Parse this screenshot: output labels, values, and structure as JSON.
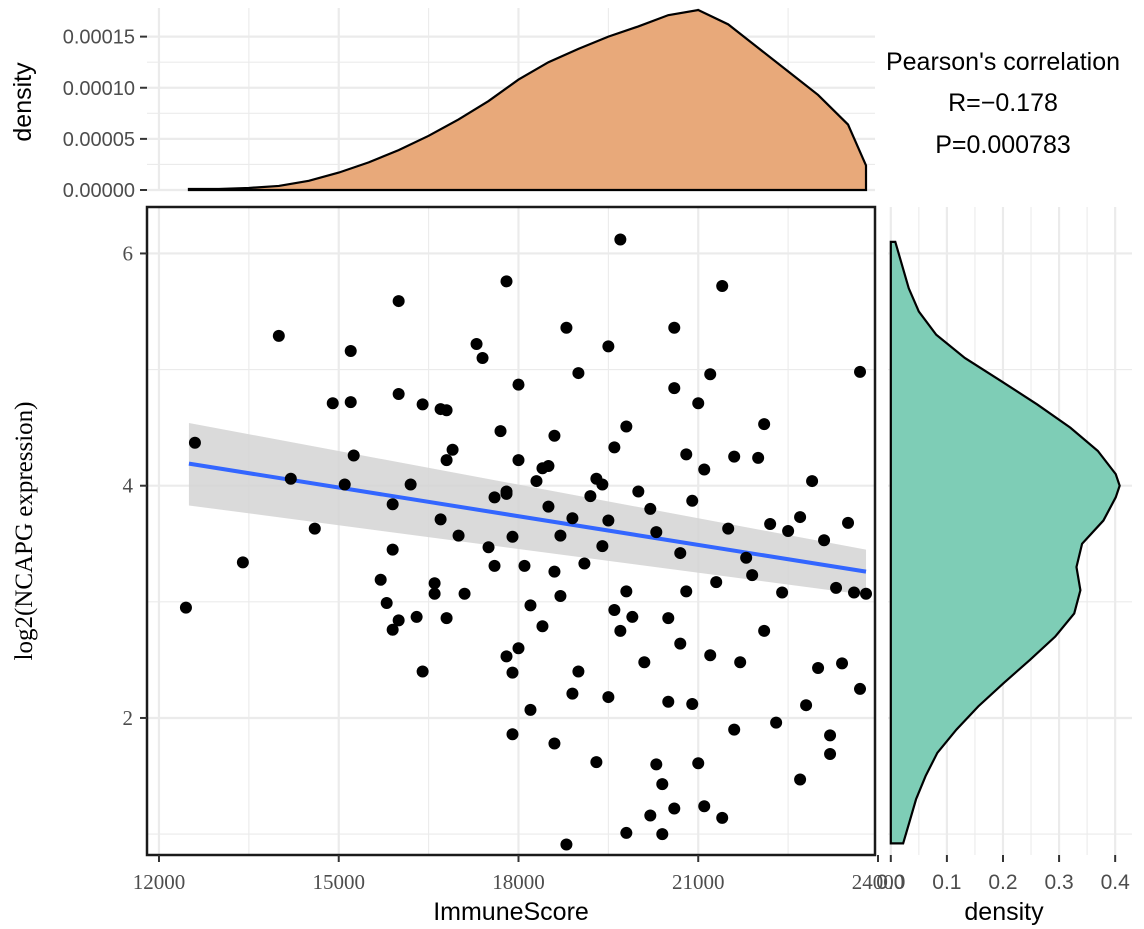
{
  "annotation": {
    "title": "Pearson's correlation",
    "r": "R=−0.178",
    "p": "P=0.000783"
  },
  "colors": {
    "top_density": "#E8A97A",
    "right_density": "#7ECDB6",
    "fit_line": "#3366FF",
    "ci_band": "#D3D3D3",
    "points": "#000000",
    "grid": "#EBEBEB"
  },
  "chart_data": [
    {
      "type": "scatter",
      "xlabel": "ImmuneScore",
      "ylabel": "log2(NCAPG expression)",
      "xlim": [
        11800,
        23950
      ],
      "ylim": [
        0.82,
        6.4
      ],
      "x_ticks": [
        12000,
        15000,
        18000,
        21000,
        24000
      ],
      "x_tick_labels": [
        "12000",
        "15000",
        "18000",
        "21000",
        "24000"
      ],
      "y_ticks": [
        2,
        4,
        6
      ],
      "y_tick_labels": [
        "2",
        "4",
        "6"
      ],
      "grid": true,
      "regression": {
        "x": [
          12500,
          23800
        ],
        "y": [
          4.19,
          3.26
        ]
      },
      "ci_band": {
        "x": [
          12500,
          23800
        ],
        "upper": [
          4.54,
          3.45
        ],
        "lower": [
          3.83,
          3.06
        ]
      },
      "points": [
        [
          12600,
          4.37
        ],
        [
          12450,
          2.95
        ],
        [
          13400,
          3.34
        ],
        [
          14000,
          5.29
        ],
        [
          14200,
          4.06
        ],
        [
          14600,
          3.63
        ],
        [
          15100,
          4.01
        ],
        [
          15250,
          4.26
        ],
        [
          15200,
          5.16
        ],
        [
          14900,
          4.71
        ],
        [
          15200,
          4.72
        ],
        [
          15900,
          3.84
        ],
        [
          16000,
          5.59
        ],
        [
          16000,
          4.79
        ],
        [
          15900,
          3.45
        ],
        [
          16200,
          4.01
        ],
        [
          15700,
          3.19
        ],
        [
          15800,
          2.99
        ],
        [
          15900,
          2.76
        ],
        [
          16000,
          2.84
        ],
        [
          16300,
          2.87
        ],
        [
          16400,
          2.4
        ],
        [
          16400,
          4.7
        ],
        [
          16600,
          3.07
        ],
        [
          16600,
          3.16
        ],
        [
          16700,
          4.66
        ],
        [
          16700,
          3.71
        ],
        [
          16800,
          2.86
        ],
        [
          16900,
          4.31
        ],
        [
          16800,
          4.22
        ],
        [
          16800,
          4.65
        ],
        [
          17000,
          3.57
        ],
        [
          17100,
          3.07
        ],
        [
          17300,
          5.22
        ],
        [
          17400,
          5.1
        ],
        [
          17500,
          3.47
        ],
        [
          17600,
          3.31
        ],
        [
          17700,
          4.47
        ],
        [
          17800,
          3.93
        ],
        [
          17800,
          2.53
        ],
        [
          17800,
          5.76
        ],
        [
          17900,
          3.56
        ],
        [
          17900,
          2.39
        ],
        [
          18000,
          2.6
        ],
        [
          18000,
          4.87
        ],
        [
          17900,
          1.86
        ],
        [
          18100,
          3.31
        ],
        [
          18200,
          2.97
        ],
        [
          18200,
          2.07
        ],
        [
          18300,
          4.04
        ],
        [
          18400,
          4.15
        ],
        [
          18500,
          4.17
        ],
        [
          18600,
          4.43
        ],
        [
          18700,
          3.57
        ],
        [
          18800,
          5.36
        ],
        [
          18900,
          2.21
        ],
        [
          19100,
          3.33
        ],
        [
          19000,
          4.97
        ],
        [
          19300,
          4.06
        ],
        [
          19500,
          5.2
        ],
        [
          19500,
          3.7
        ],
        [
          19700,
          6.12
        ],
        [
          19600,
          4.33
        ],
        [
          19800,
          3.09
        ],
        [
          19900,
          2.87
        ],
        [
          20000,
          3.95
        ],
        [
          20100,
          2.48
        ],
        [
          20300,
          1.6
        ],
        [
          20400,
          1.43
        ],
        [
          20500,
          2.86
        ],
        [
          20600,
          4.84
        ],
        [
          20700,
          2.64
        ],
        [
          20800,
          3.09
        ],
        [
          20900,
          2.12
        ],
        [
          21000,
          1.61
        ],
        [
          21200,
          2.54
        ],
        [
          21300,
          3.17
        ],
        [
          21400,
          5.72
        ],
        [
          21500,
          3.63
        ],
        [
          21600,
          4.25
        ],
        [
          21700,
          2.48
        ],
        [
          21900,
          3.23
        ],
        [
          22000,
          4.24
        ],
        [
          22100,
          2.75
        ],
        [
          22200,
          3.67
        ],
        [
          22300,
          1.96
        ],
        [
          22500,
          3.61
        ],
        [
          22700,
          3.73
        ],
        [
          22800,
          2.11
        ],
        [
          22900,
          4.04
        ],
        [
          23000,
          2.43
        ],
        [
          23100,
          3.53
        ],
        [
          23200,
          1.85
        ],
        [
          23300,
          3.12
        ],
        [
          23400,
          2.47
        ],
        [
          23500,
          3.68
        ],
        [
          23600,
          3.08
        ],
        [
          23700,
          4.98
        ],
        [
          23800,
          3.07
        ],
        [
          23700,
          2.25
        ],
        [
          19200,
          3.91
        ],
        [
          19400,
          3.48
        ],
        [
          18900,
          3.72
        ],
        [
          19800,
          4.51
        ],
        [
          20200,
          3.8
        ],
        [
          20700,
          3.42
        ],
        [
          21100,
          4.14
        ],
        [
          20900,
          3.87
        ],
        [
          19600,
          2.93
        ],
        [
          18700,
          3.05
        ],
        [
          17600,
          3.9
        ],
        [
          18400,
          2.79
        ],
        [
          19000,
          2.4
        ],
        [
          21800,
          3.38
        ],
        [
          22400,
          3.08
        ],
        [
          19300,
          1.62
        ],
        [
          18600,
          1.78
        ],
        [
          20200,
          1.16
        ],
        [
          21100,
          1.24
        ],
        [
          20600,
          1.22
        ],
        [
          21400,
          1.14
        ],
        [
          18800,
          0.91
        ],
        [
          20400,
          1.0
        ],
        [
          19800,
          1.01
        ],
        [
          20500,
          2.14
        ],
        [
          21600,
          1.9
        ],
        [
          22700,
          1.47
        ],
        [
          23200,
          1.69
        ],
        [
          19500,
          2.18
        ],
        [
          19700,
          2.75
        ],
        [
          18600,
          3.26
        ],
        [
          20300,
          3.6
        ],
        [
          22100,
          4.53
        ],
        [
          21200,
          4.96
        ],
        [
          21000,
          4.71
        ],
        [
          19400,
          4.01
        ],
        [
          18500,
          3.82
        ],
        [
          17800,
          3.95
        ],
        [
          18000,
          4.22
        ],
        [
          20600,
          5.36
        ],
        [
          20800,
          4.27
        ]
      ]
    },
    {
      "type": "area",
      "ylabel": "density",
      "ylim": [
        0,
        0.000178
      ],
      "y_ticks": [
        0,
        5e-05,
        0.0001,
        0.00015
      ],
      "y_tick_labels": [
        "0.00000",
        "0.00005",
        "0.00010",
        "0.00015"
      ],
      "x": [
        12500,
        13000,
        13500,
        14000,
        14500,
        15000,
        15500,
        16000,
        16500,
        17000,
        17500,
        18000,
        18500,
        19000,
        19500,
        20000,
        20500,
        21000,
        21500,
        22000,
        22500,
        23000,
        23500,
        23800
      ],
      "y": [
        1e-06,
        1e-06,
        2e-06,
        4e-06,
        9e-06,
        1.7e-05,
        2.7e-05,
        3.9e-05,
        5.3e-05,
        6.9e-05,
        8.7e-05,
        0.000108,
        0.000125,
        0.000138,
        0.00015,
        0.00016,
        0.000171,
        0.000176,
        0.000162,
        0.000139,
        0.000116,
        9.3e-05,
        6.4e-05,
        2.4e-05
      ]
    },
    {
      "type": "area",
      "xlabel": "density",
      "xlim": [
        -0.005,
        0.43
      ],
      "x_ticks": [
        0,
        0.1,
        0.2,
        0.3,
        0.4
      ],
      "x_tick_labels": [
        "0.0",
        "0.1",
        "0.2",
        "0.3",
        "0.4"
      ],
      "y": [
        0.92,
        1.1,
        1.3,
        1.5,
        1.7,
        1.9,
        2.1,
        2.3,
        2.5,
        2.7,
        2.9,
        3.1,
        3.3,
        3.5,
        3.7,
        3.9,
        4.0,
        4.1,
        4.3,
        4.5,
        4.7,
        4.9,
        5.1,
        5.3,
        5.5,
        5.7,
        5.9,
        6.1
      ],
      "density": [
        0.022,
        0.033,
        0.045,
        0.062,
        0.083,
        0.117,
        0.156,
        0.201,
        0.248,
        0.293,
        0.327,
        0.338,
        0.331,
        0.341,
        0.379,
        0.401,
        0.408,
        0.401,
        0.369,
        0.32,
        0.261,
        0.197,
        0.132,
        0.081,
        0.05,
        0.032,
        0.02,
        0.008
      ]
    }
  ]
}
